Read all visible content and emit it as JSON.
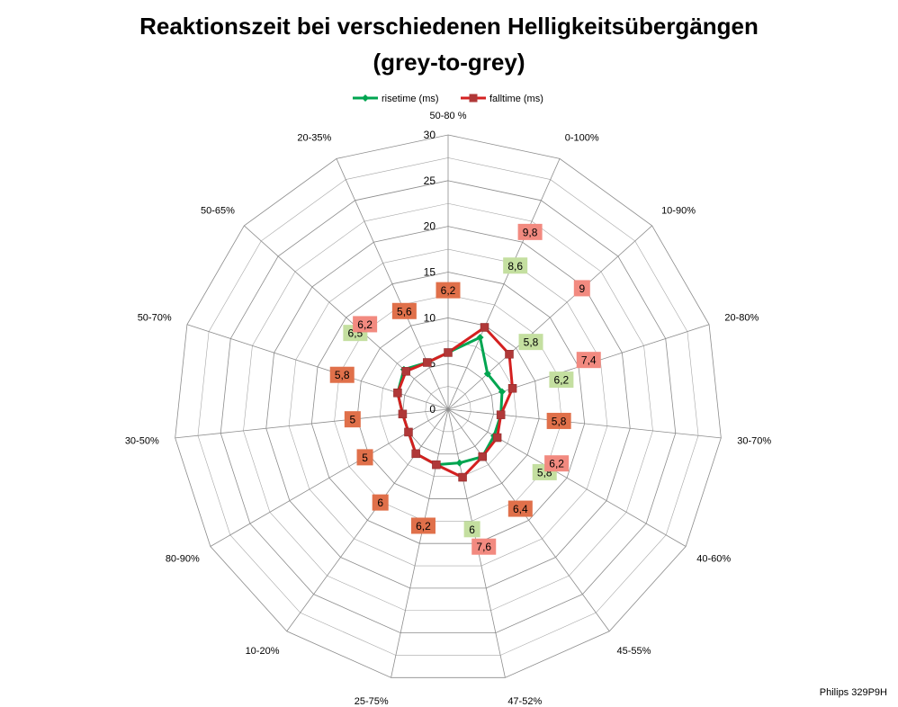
{
  "chart_data": {
    "type": "radar",
    "title": "Reaktionszeit bei verschiedenen Helligkeitsübergängen",
    "subtitle": "(grey-to-grey)",
    "categories": [
      "50-80 %",
      "0-100%",
      "10-90%",
      "20-80%",
      "30-70%",
      "40-60%",
      "45-55%",
      "47-52%",
      "25-75%",
      "10-20%",
      "80-90%",
      "30-50%",
      "50-70%",
      "50-65%",
      "20-35%"
    ],
    "rlim": [
      0,
      30
    ],
    "rticks": [
      0,
      5,
      10,
      15,
      20,
      25,
      30
    ],
    "legend_position": "top",
    "series": [
      {
        "name": "risetime (ms)",
        "color": "#00a550",
        "label_bg": "#c4dfa0",
        "values": [
          6.2,
          8.6,
          5.8,
          6.2,
          5.8,
          5.8,
          6.4,
          6.0,
          6.2,
          6.0,
          5.0,
          5.0,
          5.8,
          6.5,
          5.6
        ],
        "labels": [
          "6,2",
          "8,6",
          "5,8",
          "6,2",
          "5,8",
          "5,8",
          "6,4",
          "6",
          "6,2",
          "6",
          "5",
          "5",
          "5,8",
          "6,5",
          "5,6"
        ]
      },
      {
        "name": "falltime (ms)",
        "color": "#d42020",
        "label_bg": "#f28a80",
        "values": [
          6.2,
          9.8,
          9.0,
          7.4,
          5.8,
          6.2,
          6.4,
          7.6,
          6.2,
          6.0,
          5.0,
          5.0,
          5.8,
          6.2,
          5.6
        ],
        "labels": [
          "6,2",
          "9,8",
          "9",
          "7,4",
          "5,8",
          "6,2",
          "6,4",
          "7,6",
          "6,2",
          "6",
          "5",
          "5",
          "5,8",
          "6,2",
          "5,6"
        ]
      }
    ],
    "matched_label_bg": "#e0704a"
  },
  "footer": "Philips 329P9H"
}
